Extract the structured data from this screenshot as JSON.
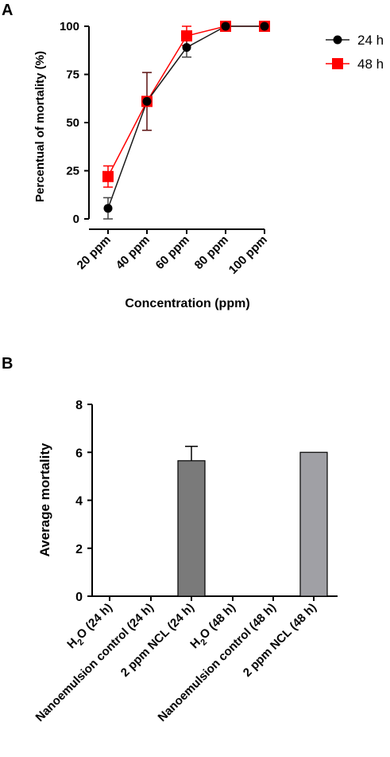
{
  "chart_data": [
    {
      "type": "line",
      "panel_label": "A",
      "categories": [
        "20 ppm",
        "40 ppm",
        "60 ppm",
        "80 ppm",
        "100 ppm"
      ],
      "series": [
        {
          "name": "24 h",
          "color": "#000000",
          "marker": "circle",
          "values": [
            5.5,
            61,
            89,
            100,
            100
          ],
          "errors": [
            5.5,
            15,
            5,
            0,
            0
          ]
        },
        {
          "name": "48 h",
          "color": "#ff0000",
          "marker": "square",
          "values": [
            22,
            61,
            95,
            100,
            100
          ],
          "errors": [
            5.5,
            0,
            5,
            0,
            0
          ]
        }
      ],
      "xlabel": "Concentration (ppm)",
      "ylabel": "Percentual of mortality (%)",
      "ylim": [
        0,
        100
      ],
      "yticks": [
        "0",
        "25",
        "50",
        "75",
        "100"
      ],
      "legend": "right"
    },
    {
      "type": "bar",
      "panel_label": "B",
      "categories": [
        {
          "base": "H",
          "sub": "2",
          "rest": "O (24 h)"
        },
        {
          "base": "Nanoemulsion control (24 h)",
          "sub": "",
          "rest": ""
        },
        {
          "base": "2 ppm NCL (24 h)",
          "sub": "",
          "rest": ""
        },
        {
          "base": "H",
          "sub": "2",
          "rest": "O (48 h)"
        },
        {
          "base": "Nanoemulsion control (48 h)",
          "sub": "",
          "rest": ""
        },
        {
          "base": "2 ppm NCL (48 h)",
          "sub": "",
          "rest": ""
        }
      ],
      "values": [
        0,
        0,
        5.65,
        0,
        0,
        6.0
      ],
      "errors": [
        0,
        0,
        0.6,
        0,
        0,
        0
      ],
      "colors": [
        "#7a7a7a",
        "#7a7a7a",
        "#7a7a7a",
        "#a0a0a5",
        "#a0a0a5",
        "#a0a0a5"
      ],
      "xlabel": "",
      "ylabel": "Average mortality",
      "ylim": [
        0,
        8
      ],
      "yticks": [
        "0",
        "2",
        "4",
        "6",
        "8"
      ]
    }
  ]
}
